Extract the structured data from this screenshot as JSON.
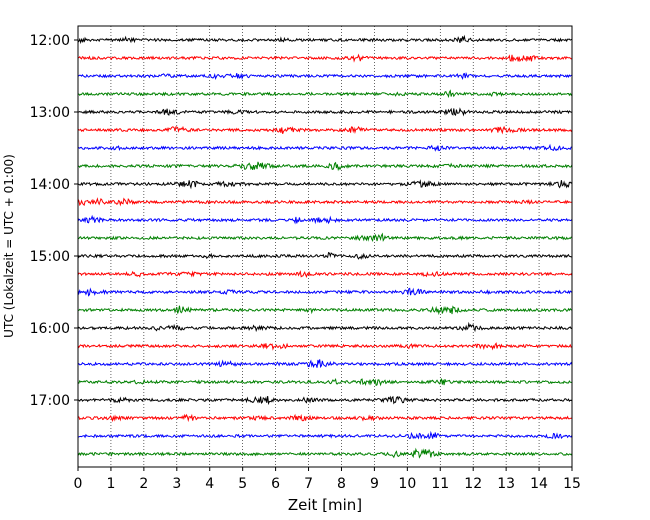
{
  "chart_data": {
    "type": "line",
    "title": "",
    "xlabel": "Zeit  [min]",
    "ylabel": "UTC (Lokalzeit = UTC + 01:00)",
    "xlim": [
      0,
      15
    ],
    "x_ticks": [
      "0",
      "1",
      "2",
      "3",
      "4",
      "5",
      "6",
      "7",
      "8",
      "9",
      "10",
      "11",
      "12",
      "13",
      "14",
      "15"
    ],
    "y_tick_labels": [
      "12:00",
      "13:00",
      "14:00",
      "15:00",
      "16:00",
      "17:00"
    ],
    "y_tick_times": [
      "12:00",
      "13:00",
      "14:00",
      "15:00",
      "16:00",
      "17:00"
    ],
    "grid": "vertical dotted lines at each minute",
    "trace_interval_min": 15,
    "trace_colors": [
      "#000000",
      "#ff0000",
      "#0000ff",
      "#008000"
    ],
    "traces": [
      {
        "start": "12:00"
      },
      {
        "start": "12:15"
      },
      {
        "start": "12:30"
      },
      {
        "start": "12:45"
      },
      {
        "start": "13:00"
      },
      {
        "start": "13:15"
      },
      {
        "start": "13:30"
      },
      {
        "start": "13:45"
      },
      {
        "start": "14:00"
      },
      {
        "start": "14:15"
      },
      {
        "start": "14:30"
      },
      {
        "start": "14:45"
      },
      {
        "start": "15:00"
      },
      {
        "start": "15:15"
      },
      {
        "start": "15:30"
      },
      {
        "start": "15:45"
      },
      {
        "start": "16:00"
      },
      {
        "start": "16:15"
      },
      {
        "start": "16:30"
      },
      {
        "start": "16:45"
      },
      {
        "start": "17:00"
      },
      {
        "start": "17:15"
      },
      {
        "start": "17:30"
      },
      {
        "start": "17:45"
      }
    ]
  }
}
